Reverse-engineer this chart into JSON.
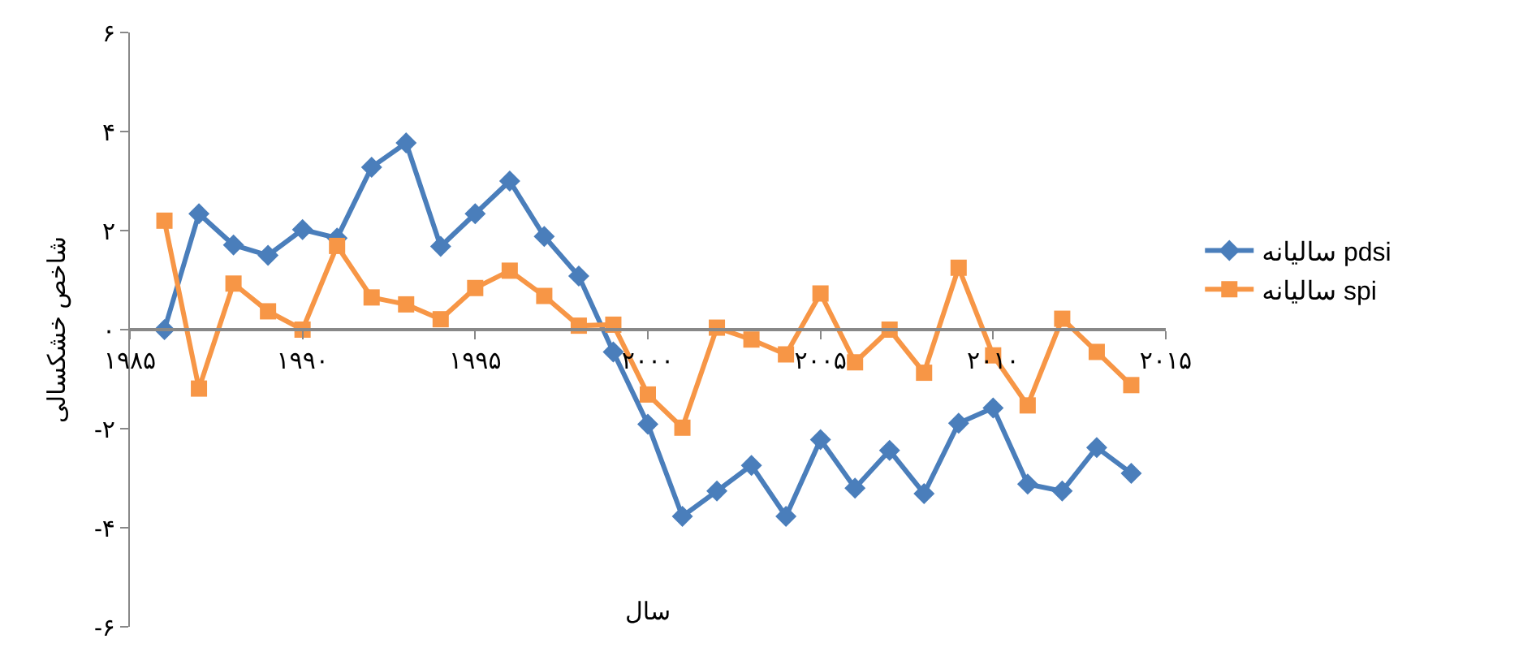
{
  "chart_data": {
    "type": "line",
    "xlabel": "سال",
    "ylabel": "شاخص خشکسالی",
    "x": [
      1986,
      1987,
      1988,
      1989,
      1990,
      1991,
      1992,
      1993,
      1994,
      1995,
      1996,
      1997,
      1998,
      1999,
      2000,
      2001,
      2002,
      2003,
      2004,
      2005,
      2006,
      2007,
      2008,
      2009,
      2010,
      2011,
      2012,
      2013,
      2014
    ],
    "series": [
      {
        "name": "سالیانه pdsi",
        "color": "#4a7ebb",
        "marker": "diamond",
        "values": [
          0,
          2.34,
          1.71,
          1.5,
          2.02,
          1.85,
          3.28,
          3.77,
          1.68,
          2.34,
          3.0,
          1.88,
          1.08,
          -0.45,
          -1.91,
          -3.77,
          -3.26,
          -2.74,
          -3.77,
          -2.22,
          -3.2,
          -2.44,
          -3.31,
          -1.89,
          -1.58,
          -3.12,
          -3.26,
          -2.38,
          -2.9
        ]
      },
      {
        "name": "سالیانه spi",
        "color": "#f79646",
        "marker": "square",
        "values": [
          2.2,
          -1.19,
          0.93,
          0.37,
          0.0,
          1.69,
          0.65,
          0.51,
          0.21,
          0.84,
          1.19,
          0.68,
          0.08,
          0.1,
          -1.31,
          -1.98,
          0.04,
          -0.2,
          -0.5,
          0.73,
          -0.66,
          0.0,
          -0.87,
          1.25,
          -0.52,
          -1.53,
          0.22,
          -0.45,
          -1.12
        ]
      }
    ],
    "xlim": [
      1985,
      2015
    ],
    "xticks": [
      {
        "value": 1985,
        "label": "۱۹۸۵"
      },
      {
        "value": 1990,
        "label": "۱۹۹۰"
      },
      {
        "value": 1995,
        "label": "۱۹۹۵"
      },
      {
        "value": 2000,
        "label": "۲۰۰۰"
      },
      {
        "value": 2005,
        "label": "۲۰۰۵"
      },
      {
        "value": 2010,
        "label": "۲۰۱۰"
      },
      {
        "value": 2015,
        "label": "۲۰۱۵"
      }
    ],
    "ylim": [
      -6,
      6
    ],
    "yticks": [
      {
        "value": -6,
        "label": "-۶"
      },
      {
        "value": -4,
        "label": "-۴"
      },
      {
        "value": -2,
        "label": "-۲"
      },
      {
        "value": 0,
        "label": "۰"
      },
      {
        "value": 2,
        "label": "۲"
      },
      {
        "value": 4,
        "label": "۴"
      },
      {
        "value": 6,
        "label": "۶"
      }
    ],
    "grid": false,
    "legend": "right",
    "line_style": "solid"
  }
}
